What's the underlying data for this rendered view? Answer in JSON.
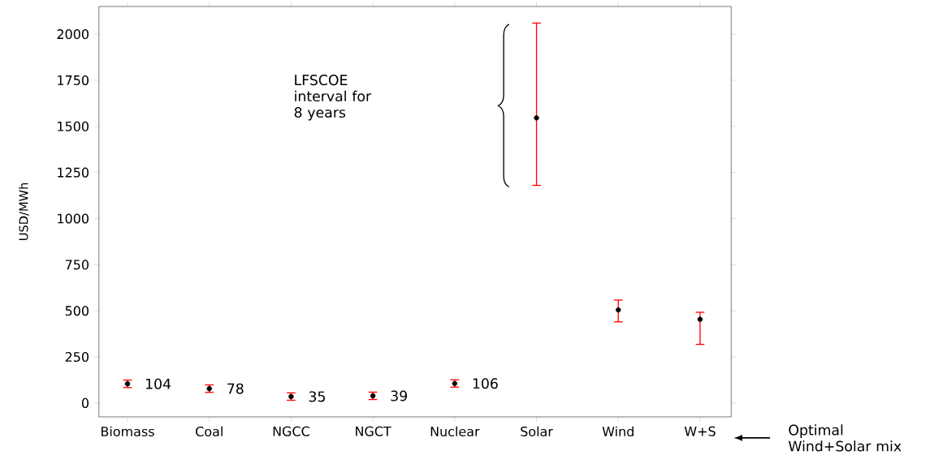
{
  "chart_data": {
    "type": "scatter",
    "ylabel": "USD/MWh",
    "categories": [
      "Biomass",
      "Coal",
      "NGCC",
      "NGCT",
      "Nuclear",
      "Solar",
      "Wind",
      "W+S"
    ],
    "values": [
      104,
      78,
      35,
      39,
      106,
      1546,
      505,
      454
    ],
    "errors": [
      20,
      20,
      20,
      20,
      20,
      [
        1180,
        2060
      ],
      [
        440,
        558
      ],
      [
        318,
        492
      ]
    ],
    "color": "#000000",
    "marker": "circle",
    "value_labels": [
      "104",
      "78",
      "35",
      "39",
      "106",
      null,
      null,
      null
    ],
    "ylim": [
      -75,
      2150
    ],
    "yticks": [
      0,
      250,
      500,
      750,
      1000,
      1250,
      1500,
      1750,
      2000
    ],
    "grid": false,
    "annotations": [
      "LFSCOE interval for 8 years",
      "Optimal Wind+Solar mix"
    ]
  }
}
